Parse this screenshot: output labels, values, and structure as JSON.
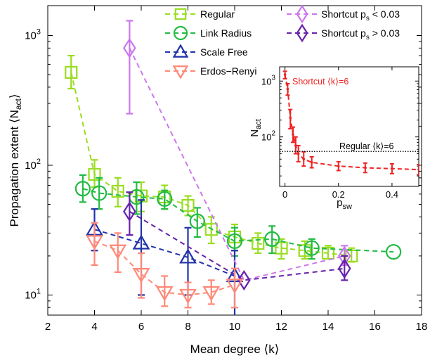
{
  "chart_data": [
    {
      "type": "line",
      "xlabel": "Mean degree ⟨k⟩",
      "ylabel": "Propagation extent ⟨N",
      "ylabel_sub": "act",
      "ylabel_end": "⟩",
      "x_scale": "linear",
      "y_scale": "log",
      "xlim": [
        2,
        18
      ],
      "ylim": [
        7,
        1700
      ],
      "x_ticks": [
        2,
        4,
        6,
        8,
        10,
        12,
        14,
        16,
        18
      ],
      "x_tick_labels": [
        "2",
        "4",
        "6",
        "8",
        "10",
        "12",
        "14",
        "16",
        "18"
      ],
      "y_ticks": [
        10,
        100,
        1000
      ],
      "y_tick_labels": [
        {
          "base": "10",
          "exp": "1"
        },
        {
          "base": "10",
          "exp": "2"
        },
        {
          "base": "10",
          "exp": "3"
        }
      ],
      "legend": {
        "placement": "top-center",
        "entries": [
          {
            "series": 0,
            "label": "Regular"
          },
          {
            "series": 1,
            "label": "Link Radius"
          },
          {
            "series": 2,
            "label": "Scale Free"
          },
          {
            "series": 5,
            "label": "Erdos−Renyi"
          },
          {
            "series": 3,
            "label": "Shortcut p",
            "sub": "s",
            "tail": " < 0.03"
          },
          {
            "series": 4,
            "label": "Shortcut p",
            "sub": "s",
            "tail": " > 0.03"
          }
        ]
      },
      "series": [
        {
          "name": "Regular",
          "color": "#99dd22",
          "marker": "square",
          "points": [
            {
              "x": 3.0,
              "y": 520,
              "lo": 390,
              "hi": 700
            },
            {
              "x": 4.0,
              "y": 85,
              "lo": 68,
              "hi": 110
            },
            {
              "x": 5.0,
              "y": 63,
              "lo": 48,
              "hi": 80
            },
            {
              "x": 6.0,
              "y": 58,
              "lo": 44,
              "hi": 74
            },
            {
              "x": 7.0,
              "y": 57,
              "lo": 46,
              "hi": 70
            },
            {
              "x": 8.0,
              "y": 49,
              "lo": 41,
              "hi": 58
            },
            {
              "x": 9.0,
              "y": 32,
              "lo": 25,
              "hi": 40
            },
            {
              "x": 10.0,
              "y": 28,
              "lo": 22,
              "hi": 35
            },
            {
              "x": 11.0,
              "y": 25,
              "lo": 21,
              "hi": 30
            },
            {
              "x": 12.0,
              "y": 23,
              "lo": 19,
              "hi": 27
            },
            {
              "x": 13.0,
              "y": 22,
              "lo": 19,
              "hi": 26
            },
            {
              "x": 14.0,
              "y": 21,
              "lo": 19,
              "hi": 24
            },
            {
              "x": 15.0,
              "y": 20,
              "lo": 18,
              "hi": 23
            }
          ]
        },
        {
          "name": "Link Radius",
          "color": "#22bb44",
          "marker": "circle",
          "points": [
            {
              "x": 3.5,
              "y": 66,
              "lo": 52,
              "hi": 84
            },
            {
              "x": 4.2,
              "y": 61,
              "lo": 46,
              "hi": 80
            },
            {
              "x": 5.8,
              "y": 57,
              "lo": 42,
              "hi": 74
            },
            {
              "x": 7.0,
              "y": 55,
              "lo": 46,
              "hi": 64
            },
            {
              "x": 8.4,
              "y": 37,
              "lo": 28,
              "hi": 47
            },
            {
              "x": 10.0,
              "y": 26,
              "lo": 20,
              "hi": 33
            },
            {
              "x": 11.6,
              "y": 27,
              "lo": 21,
              "hi": 34
            },
            {
              "x": 13.3,
              "y": 23,
              "lo": 19,
              "hi": 27
            },
            {
              "x": 16.8,
              "y": 21.5
            }
          ]
        },
        {
          "name": "Scale Free",
          "color": "#2233aa",
          "marker": "triangle-up",
          "points": [
            {
              "x": 4.0,
              "y": 32,
              "lo": 22,
              "hi": 46
            },
            {
              "x": 6.0,
              "y": 25,
              "lo": 10,
              "hi": 54
            },
            {
              "x": 8.0,
              "y": 19.5,
              "lo": 10,
              "hi": 33
            },
            {
              "x": 10.0,
              "y": 14,
              "lo": 6.2,
              "hi": 22
            }
          ]
        },
        {
          "name": "Shortcut p_s < 0.03",
          "color": "#cc77ee",
          "marker": "diamond",
          "points": [
            {
              "x": 5.5,
              "y": 800,
              "lo": 250,
              "hi": 1300
            },
            {
              "x": 10.4,
              "y": 13
            },
            {
              "x": 14.7,
              "y": 20,
              "lo": 17,
              "hi": 24
            }
          ]
        },
        {
          "name": "Shortcut p_s > 0.03",
          "color": "#6622aa",
          "marker": "diamond",
          "points": [
            {
              "x": 5.5,
              "y": 44,
              "lo": 29,
              "hi": 62
            },
            {
              "x": 10.4,
              "y": 13
            },
            {
              "x": 14.7,
              "y": 16,
              "lo": 13,
              "hi": 20
            }
          ]
        },
        {
          "name": "Erdos−Renyi",
          "color": "#ff8877",
          "marker": "triangle-down",
          "points": [
            {
              "x": 4.0,
              "y": 26,
              "lo": 17,
              "hi": 36
            },
            {
              "x": 5.0,
              "y": 22,
              "lo": 15,
              "hi": 30
            },
            {
              "x": 6.0,
              "y": 14.5,
              "lo": 9.5,
              "hi": 21
            },
            {
              "x": 7.0,
              "y": 10.5,
              "lo": 8.2,
              "hi": 14
            },
            {
              "x": 8.0,
              "y": 10,
              "lo": 8,
              "hi": 12.5
            },
            {
              "x": 9.0,
              "y": 10.5,
              "lo": 8.5,
              "hi": 13
            },
            {
              "x": 10.0,
              "y": 12,
              "lo": 8,
              "hi": 16
            }
          ]
        }
      ]
    },
    {
      "type": "line",
      "inset": true,
      "xlabel": "p",
      "xlabel_sub": "sw",
      "ylabel": "N",
      "ylabel_sub": "act",
      "x_scale": "linear",
      "y_scale": "log",
      "xlim": [
        -0.02,
        0.5
      ],
      "ylim": [
        13,
        1800
      ],
      "x_ticks": [
        0,
        0.2,
        0.4
      ],
      "x_tick_labels": [
        "0",
        "0.2",
        "0.4"
      ],
      "y_ticks": [
        100,
        1000
      ],
      "y_tick_labels": [
        {
          "base": "10",
          "exp": "2"
        },
        {
          "base": "10",
          "exp": "3"
        }
      ],
      "series": [
        {
          "name": "Shortcut ⟨k⟩=6",
          "color": "#ee2222",
          "style": "dashed",
          "points": [
            {
              "x": 0.0,
              "y": 1300,
              "lo": 1100,
              "hi": 1500
            },
            {
              "x": 0.01,
              "y": 720,
              "lo": 560,
              "hi": 900
            },
            {
              "x": 0.02,
              "y": 220,
              "lo": 140,
              "hi": 310
            },
            {
              "x": 0.03,
              "y": 110,
              "lo": 80,
              "hi": 150
            },
            {
              "x": 0.04,
              "y": 70,
              "lo": 50,
              "hi": 100
            },
            {
              "x": 0.05,
              "y": 50,
              "lo": 36,
              "hi": 70
            },
            {
              "x": 0.07,
              "y": 40,
              "lo": 30,
              "hi": 54
            },
            {
              "x": 0.1,
              "y": 35,
              "lo": 28,
              "hi": 44
            },
            {
              "x": 0.2,
              "y": 30,
              "lo": 25,
              "hi": 36
            },
            {
              "x": 0.3,
              "y": 28,
              "lo": 23,
              "hi": 34
            },
            {
              "x": 0.4,
              "y": 27,
              "lo": 22,
              "hi": 33
            },
            {
              "x": 0.5,
              "y": 26,
              "lo": 21,
              "hi": 32
            }
          ]
        }
      ],
      "reference_line": {
        "label": "Regular ⟨k⟩=6",
        "y": 55,
        "color": "#000000",
        "style": "dotted"
      },
      "annotations": [
        {
          "text": "Shortcut ⟨k⟩=6",
          "color": "#ee2222"
        },
        {
          "text": "Regular ⟨k⟩=6",
          "color": "#000000"
        }
      ]
    }
  ]
}
